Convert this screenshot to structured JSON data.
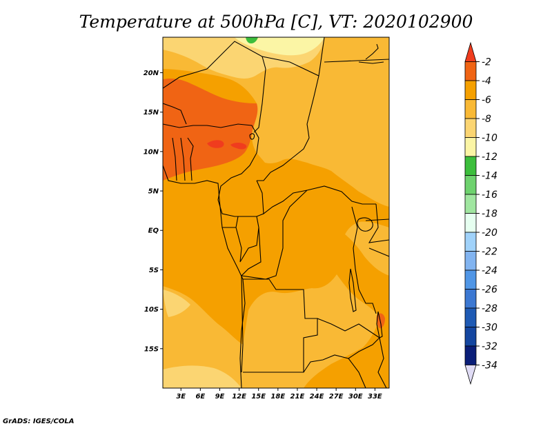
{
  "chart_data": {
    "type": "heatmap",
    "title": "Temperature at 500hPa [C], VT: 2020102900",
    "variable_unit": "C",
    "x_ticks": [
      "3E",
      "6E",
      "9E",
      "12E",
      "15E",
      "18E",
      "21E",
      "24E",
      "27E",
      "30E",
      "33E"
    ],
    "x_tick_values": [
      3,
      6,
      9,
      12,
      15,
      18,
      21,
      24,
      27,
      30,
      33
    ],
    "y_ticks": [
      "20N",
      "15N",
      "10N",
      "5N",
      "EQ",
      "5S",
      "10S",
      "15S"
    ],
    "y_tick_values": [
      20,
      15,
      10,
      5,
      0,
      -5,
      -10,
      -15
    ],
    "xlim": [
      0.2,
      35.2
    ],
    "ylim": [
      -20,
      24.5
    ],
    "colorbar": {
      "labels": [
        "-2",
        "-4",
        "-6",
        "-8",
        "-10",
        "-12",
        "-14",
        "-16",
        "-18",
        "-20",
        "-22",
        "-24",
        "-26",
        "-28",
        "-30",
        "-32",
        "-34"
      ],
      "values": [
        -2,
        -4,
        -6,
        -8,
        -10,
        -12,
        -14,
        -16,
        -18,
        -20,
        -22,
        -24,
        -26,
        -28,
        -30,
        -32,
        -34
      ],
      "colors": [
        "#f03c1e",
        "#f06414",
        "#f5a000",
        "#f9b935",
        "#fbd572",
        "#fbf5a5",
        "#3cbe3c",
        "#6ed26e",
        "#a0e6a0",
        "#e6fff0",
        "#a0d2fa",
        "#82b4f0",
        "#5096e6",
        "#3c78d2",
        "#1e5ab4",
        "#1446a0",
        "#0a1e78",
        "#e0dcf5"
      ]
    },
    "field_levels": [
      {
        "range": "-2 to -4",
        "color": "#f06414"
      },
      {
        "range": "-4 to -6",
        "color": "#f5a000"
      },
      {
        "range": "-6 to -8",
        "color": "#f9b935"
      },
      {
        "range": "-8 to -10",
        "color": "#fbd572"
      },
      {
        "range": "-10 to -12",
        "color": "#fbf5a5"
      },
      {
        "range": "-12 to -14",
        "color": "#3cbe3c"
      }
    ]
  },
  "credit": "GrADS: IGES/COLA"
}
